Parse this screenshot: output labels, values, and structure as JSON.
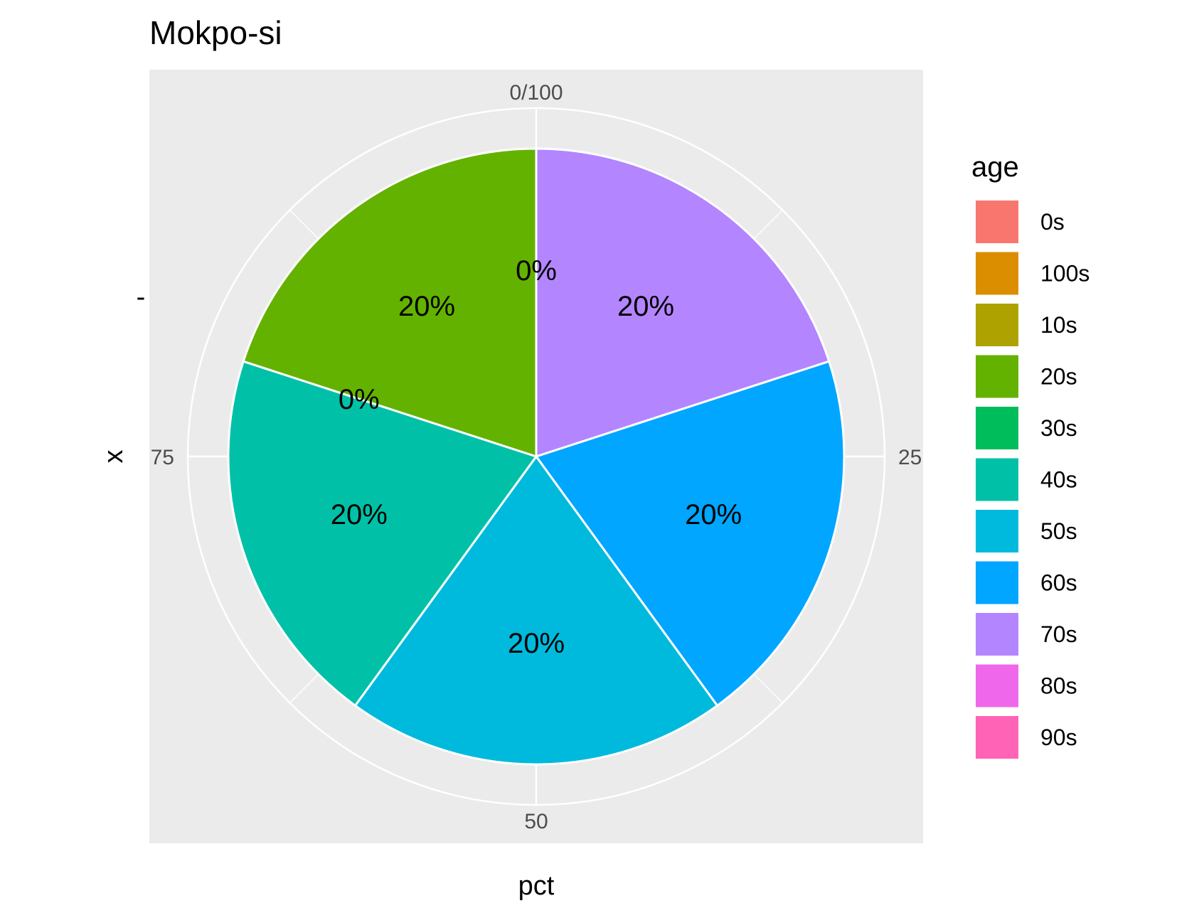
{
  "chart_data": {
    "type": "pie",
    "title": "Mokpo-si",
    "xlabel": "pct",
    "ylabel": "x",
    "y_tick_label": "-",
    "theta_ticks": [
      "0/100",
      "25",
      "50",
      "75"
    ],
    "theta_tick_values": [
      0,
      25,
      50,
      75
    ],
    "theta_range": [
      0,
      100
    ],
    "legend_title": "age",
    "legend_position": "right",
    "grid": true,
    "panel_background": "#ebebeb",
    "categories": [
      "0s",
      "100s",
      "10s",
      "20s",
      "30s",
      "40s",
      "50s",
      "60s",
      "70s",
      "80s",
      "90s"
    ],
    "colors": [
      "#F8766D",
      "#DB8E00",
      "#AEA200",
      "#64B200",
      "#00BD5C",
      "#00C1A7",
      "#00BADE",
      "#00A6FF",
      "#B385FF",
      "#EF67EB",
      "#FF63B6"
    ],
    "slices": [
      {
        "age": "70s",
        "value": 20,
        "label": "20%"
      },
      {
        "age": "60s",
        "value": 20,
        "label": "20%"
      },
      {
        "age": "50s",
        "value": 20,
        "label": "20%"
      },
      {
        "age": "40s",
        "value": 20,
        "label": "20%"
      },
      {
        "age": "30s",
        "value": 0,
        "label": "0%"
      },
      {
        "age": "20s",
        "value": 20,
        "label": "20%"
      },
      {
        "age": "10s",
        "value": 0,
        "label": "0%"
      }
    ]
  }
}
